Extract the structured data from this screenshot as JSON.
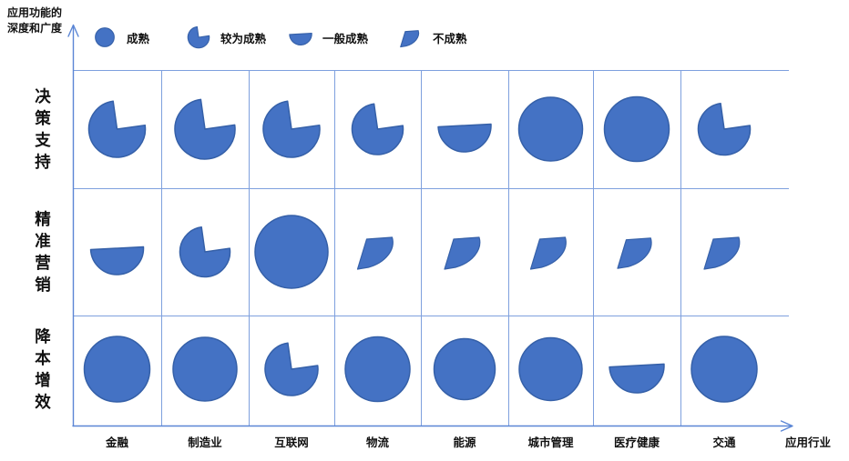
{
  "chart_data": {
    "type": "heatmap",
    "y_axis_label_lines": [
      "应用功能的",
      "深度和广度"
    ],
    "x_axis_label": "应用行业",
    "legend": [
      {
        "label": "成熟",
        "level": "mature"
      },
      {
        "label": "较为成熟",
        "level": "fairly_mature"
      },
      {
        "label": "一般成熟",
        "level": "moderately_mature"
      },
      {
        "label": "不成熟",
        "level": "immature"
      }
    ],
    "row_categories": [
      "决策支持",
      "精准营销",
      "降本增效"
    ],
    "column_categories": [
      "金融",
      "制造业",
      "互联网",
      "物流",
      "能源",
      "城市管理",
      "医疗健康",
      "交通"
    ],
    "cells": [
      [
        {
          "level": "fairly_mature",
          "size": 62
        },
        {
          "level": "fairly_mature",
          "size": 66
        },
        {
          "level": "fairly_mature",
          "size": 62
        },
        {
          "level": "fairly_mature",
          "size": 56
        },
        {
          "level": "moderately_mature",
          "size": 58
        },
        {
          "level": "mature",
          "size": 70
        },
        {
          "level": "mature",
          "size": 71
        },
        {
          "level": "fairly_mature",
          "size": 57
        }
      ],
      [
        {
          "level": "moderately_mature",
          "size": 58
        },
        {
          "level": "fairly_mature",
          "size": 55
        },
        {
          "level": "mature",
          "size": 80
        },
        {
          "level": "immature",
          "size": 44
        },
        {
          "level": "immature",
          "size": 44
        },
        {
          "level": "immature",
          "size": 44
        },
        {
          "level": "immature",
          "size": 42
        },
        {
          "level": "immature",
          "size": 44
        }
      ],
      [
        {
          "level": "mature",
          "size": 72
        },
        {
          "level": "mature",
          "size": 70
        },
        {
          "level": "fairly_mature",
          "size": 58
        },
        {
          "level": "mature",
          "size": 71
        },
        {
          "level": "mature",
          "size": 67
        },
        {
          "level": "mature",
          "size": 69
        },
        {
          "level": "moderately_mature",
          "size": 60
        },
        {
          "level": "mature",
          "size": 72
        }
      ]
    ],
    "colors": {
      "shape_fill": "#4472C4",
      "shape_stroke": "#3560A8",
      "grid_line": "#7EA0DE",
      "axis": "#5B86D5",
      "text": "#111111"
    }
  }
}
